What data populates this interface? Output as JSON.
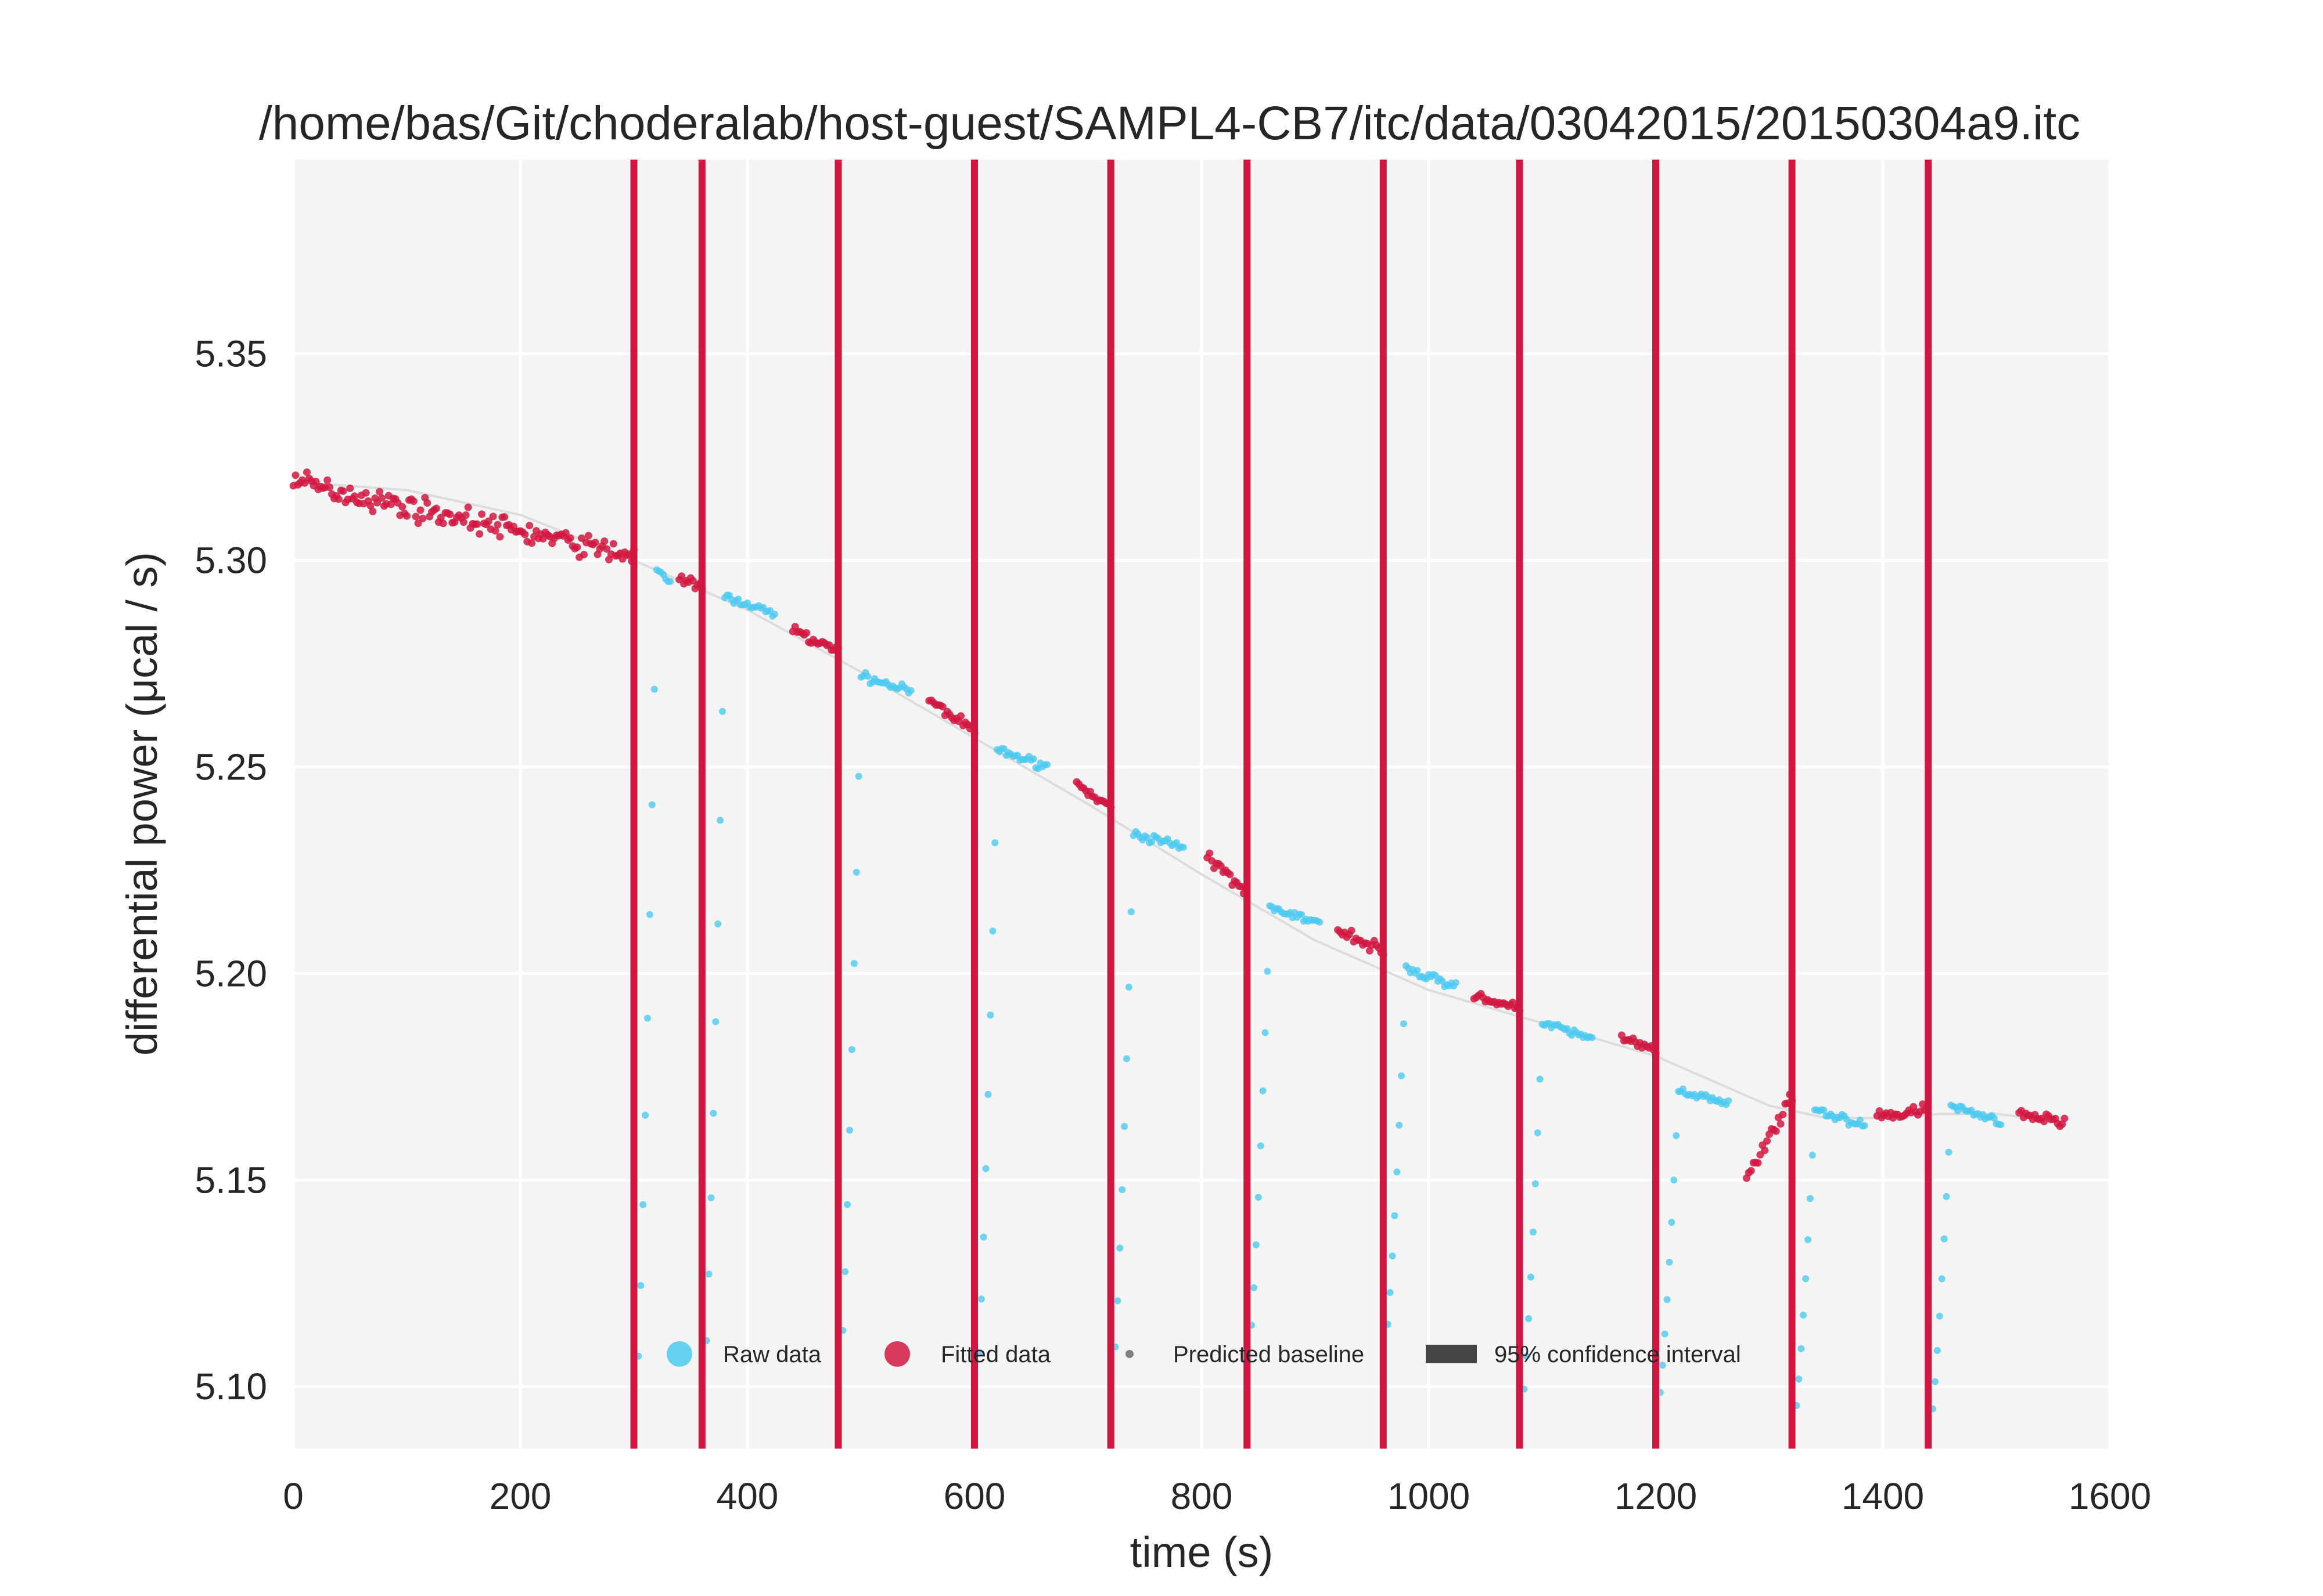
{
  "chart_data": {
    "type": "scatter",
    "title": "/home/bas/Git/choderalab/host-guest/SAMPL4-CB7/itc/data/03042015/20150304a9.itc",
    "xlabel": "time (s)",
    "ylabel": "differential power (μcal / s)",
    "xlim": [
      0,
      1600
    ],
    "ylim": [
      5.085,
      5.397
    ],
    "x_ticks": [
      "0",
      "200",
      "400",
      "600",
      "800",
      "1000",
      "1200",
      "1400",
      "1600"
    ],
    "x_tick_values": [
      0,
      200,
      400,
      600,
      800,
      1000,
      1200,
      1400,
      1600
    ],
    "y_ticks": [
      "5.10",
      "5.15",
      "5.20",
      "5.25",
      "5.30",
      "5.35"
    ],
    "y_tick_values": [
      5.1,
      5.15,
      5.2,
      5.25,
      5.3,
      5.35
    ],
    "grid": true,
    "legend_position": "lower-center",
    "injection_times": [
      300,
      360,
      480,
      600,
      720,
      840,
      960,
      1080,
      1200,
      1320,
      1440
    ],
    "baseline": {
      "x": [
        0,
        100,
        200,
        300,
        400,
        500,
        600,
        700,
        800,
        900,
        1000,
        1100,
        1200,
        1300,
        1350,
        1400,
        1450,
        1500,
        1560
      ],
      "y": [
        5.319,
        5.317,
        5.311,
        5.3,
        5.288,
        5.273,
        5.257,
        5.241,
        5.224,
        5.208,
        5.196,
        5.188,
        5.18,
        5.168,
        5.165,
        5.165,
        5.166,
        5.166,
        5.164
      ]
    },
    "series": [
      {
        "name": "Raw data",
        "color": "#4cc9f0",
        "role": "raw"
      },
      {
        "name": "Fitted data",
        "color": "#d1173f",
        "role": "fitted"
      },
      {
        "name": "Predicted baseline",
        "color": "#808080",
        "role": "baseline"
      },
      {
        "name": "95% confidence interval",
        "color": "#444444",
        "role": "ci"
      }
    ],
    "injection_min": [
      5.085,
      5.09,
      5.095,
      5.091,
      5.095,
      5.103,
      5.105,
      5.089,
      5.09,
      5.087,
      5.086
    ],
    "injection_recovery_peak": [
      5.298,
      5.291,
      5.272,
      5.254,
      5.234,
      5.216,
      5.201,
      5.188,
      5.172,
      5.167,
      5.168
    ],
    "fitted_segments": [
      {
        "x": [
          0,
          300
        ],
        "y": [
          5.319,
          5.301
        ],
        "spread": 0.004
      },
      {
        "x": [
          340,
          360
        ],
        "y": [
          5.296,
          5.293
        ],
        "spread": 0.002
      },
      {
        "x": [
          440,
          480
        ],
        "y": [
          5.283,
          5.278
        ],
        "spread": 0.002
      },
      {
        "x": [
          560,
          600
        ],
        "y": [
          5.266,
          5.259
        ],
        "spread": 0.002
      },
      {
        "x": [
          690,
          720
        ],
        "y": [
          5.246,
          5.24
        ],
        "spread": 0.002
      },
      {
        "x": [
          805,
          840
        ],
        "y": [
          5.228,
          5.22
        ],
        "spread": 0.002
      },
      {
        "x": [
          920,
          960
        ],
        "y": [
          5.211,
          5.205
        ],
        "spread": 0.002
      },
      {
        "x": [
          1040,
          1080
        ],
        "y": [
          5.195,
          5.191
        ],
        "spread": 0.002
      },
      {
        "x": [
          1170,
          1200
        ],
        "y": [
          5.185,
          5.181
        ],
        "spread": 0.002
      },
      {
        "x": [
          1280,
          1320
        ],
        "y": [
          5.15,
          5.17
        ],
        "spread": 0.003
      },
      {
        "x": [
          1395,
          1440
        ],
        "y": [
          5.165,
          5.167
        ],
        "spread": 0.002
      },
      {
        "x": [
          1520,
          1560
        ],
        "y": [
          5.166,
          5.164
        ],
        "spread": 0.002
      }
    ]
  }
}
